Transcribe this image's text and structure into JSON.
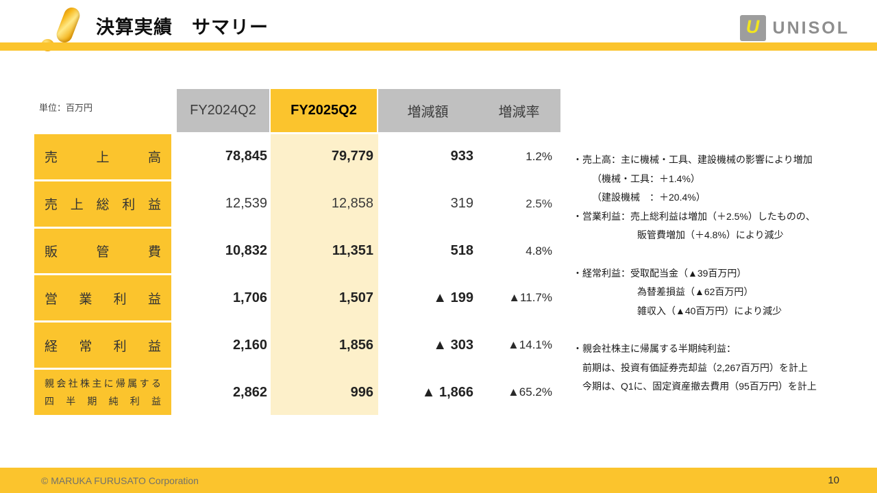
{
  "header": {
    "title": "決算実績　サマリー",
    "logo_monogram": "U",
    "logo_text": "UNISOL"
  },
  "table": {
    "unit_label": "単位：百万円",
    "columns": [
      "FY2024Q2",
      "FY2025Q2",
      "増減額",
      "増減率"
    ],
    "rows": [
      {
        "label": "売上高",
        "fy2024": "78,845",
        "fy2025": "79,779",
        "change": "933",
        "rate": "1.2%"
      },
      {
        "label": "売上総利益",
        "fy2024": "12,539",
        "fy2025": "12,858",
        "change": "319",
        "rate": "2.5%"
      },
      {
        "label": "販管費",
        "fy2024": "10,832",
        "fy2025": "11,351",
        "change": "518",
        "rate": "4.8%"
      },
      {
        "label": "営業利益",
        "fy2024": "1,706",
        "fy2025": "1,507",
        "change": "▲ 199",
        "rate": "▲11.7%"
      },
      {
        "label": "経常利益",
        "fy2024": "2,160",
        "fy2025": "1,856",
        "change": "▲ 303",
        "rate": "▲14.1%"
      },
      {
        "label_line1": "親会社株主に帰属する",
        "label_line2": "四半期純利益",
        "fy2024": "2,862",
        "fy2025": "996",
        "change": "▲ 1,866",
        "rate": "▲65.2%"
      }
    ]
  },
  "notes": {
    "lines": [
      "・売上高：主に機械・工具、建設機械の影響により増加",
      "（機械・工具：＋1.4%）",
      "（建設機械　：＋20.4%）",
      "・営業利益：売上総利益は増加（＋2.5%）したものの、",
      "販管費増加（＋4.8%）により減少",
      "・経常利益：受取配当金（▲39百万円）",
      "為替差損益（▲62百万円）",
      "雑収入（▲40百万円）により減少",
      "・親会社株主に帰属する半期純利益：",
      "前期は、投資有価証券売却益（2,267百万円）を計上",
      "今期は、Q1に、固定資産撤去費用（95百万円）を計上"
    ]
  },
  "footer": {
    "copyright": "© MARUKA FURUSATO Corporation",
    "page_number": "10"
  },
  "colors": {
    "accent": "#FBC42D",
    "highlight_column": "#FDF0CA",
    "header_gray": "#C0C0C0"
  }
}
